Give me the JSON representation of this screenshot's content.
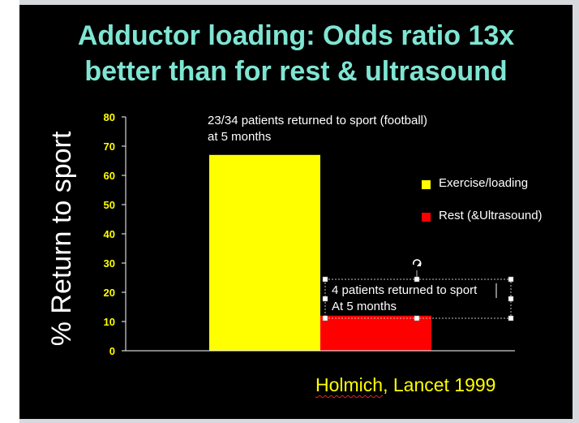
{
  "slide": {
    "title_line1": "Adductor loading: Odds ratio 13x",
    "title_line2": "better than for rest & ultrasound",
    "citation_author": "Holmich",
    "citation_rest": ", Lancet 1999",
    "annotation_top_line1": "23/34 patients returned to sport (football)",
    "annotation_top_line2": "at 5 months",
    "annotation_bottom_line1": "4 patients returned to sport",
    "annotation_bottom_line2": "At 5 months",
    "rotate_icon": "rotate-handle-icon"
  },
  "colors": {
    "background": "#000000",
    "title": "#7fe5d3",
    "tick_labels": "#ffff00",
    "exercise": "#ffff00",
    "rest": "#ff0000"
  },
  "chart_data": {
    "type": "bar",
    "title": "",
    "ylabel": "% Return to sport",
    "xlabel": "",
    "ylim": [
      0,
      80
    ],
    "yticks": [
      0,
      10,
      20,
      30,
      40,
      50,
      60,
      70,
      80
    ],
    "grid": false,
    "legend_position": "right",
    "series": [
      {
        "name": "Exercise/loading",
        "values": [
          67
        ],
        "color": "#ffff00"
      },
      {
        "name": "Rest (&Ultrasound)",
        "values": [
          12
        ],
        "color": "#ff0000"
      }
    ]
  }
}
